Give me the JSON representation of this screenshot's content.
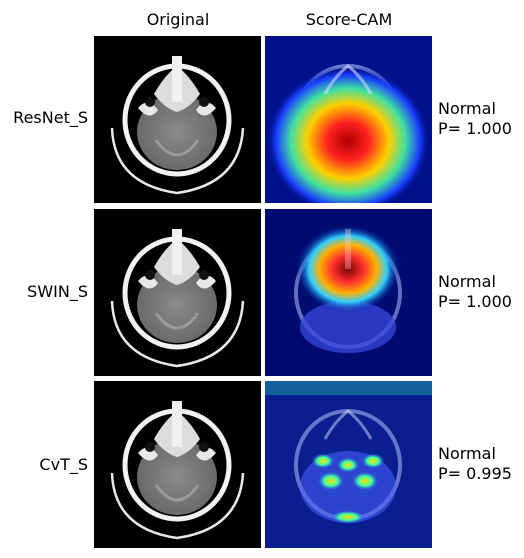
{
  "columns": {
    "original": "Original",
    "scorecam": "Score-CAM"
  },
  "rows": [
    {
      "model": "ResNet_S",
      "class": "Normal",
      "prob": "P= 1.000",
      "heatmap": "posterior-fossa"
    },
    {
      "model": "SWIN_S",
      "class": "Normal",
      "prob": "P= 1.000",
      "heatmap": "anterior-midline"
    },
    {
      "model": "CvT_S",
      "class": "Normal",
      "prob": "P= 0.995",
      "heatmap": "diffuse-spots"
    }
  ],
  "colors": {
    "background": "#ffffff",
    "scan_background": "#000000",
    "cam_low": "#00008b",
    "cam_high": "#ff0000"
  }
}
